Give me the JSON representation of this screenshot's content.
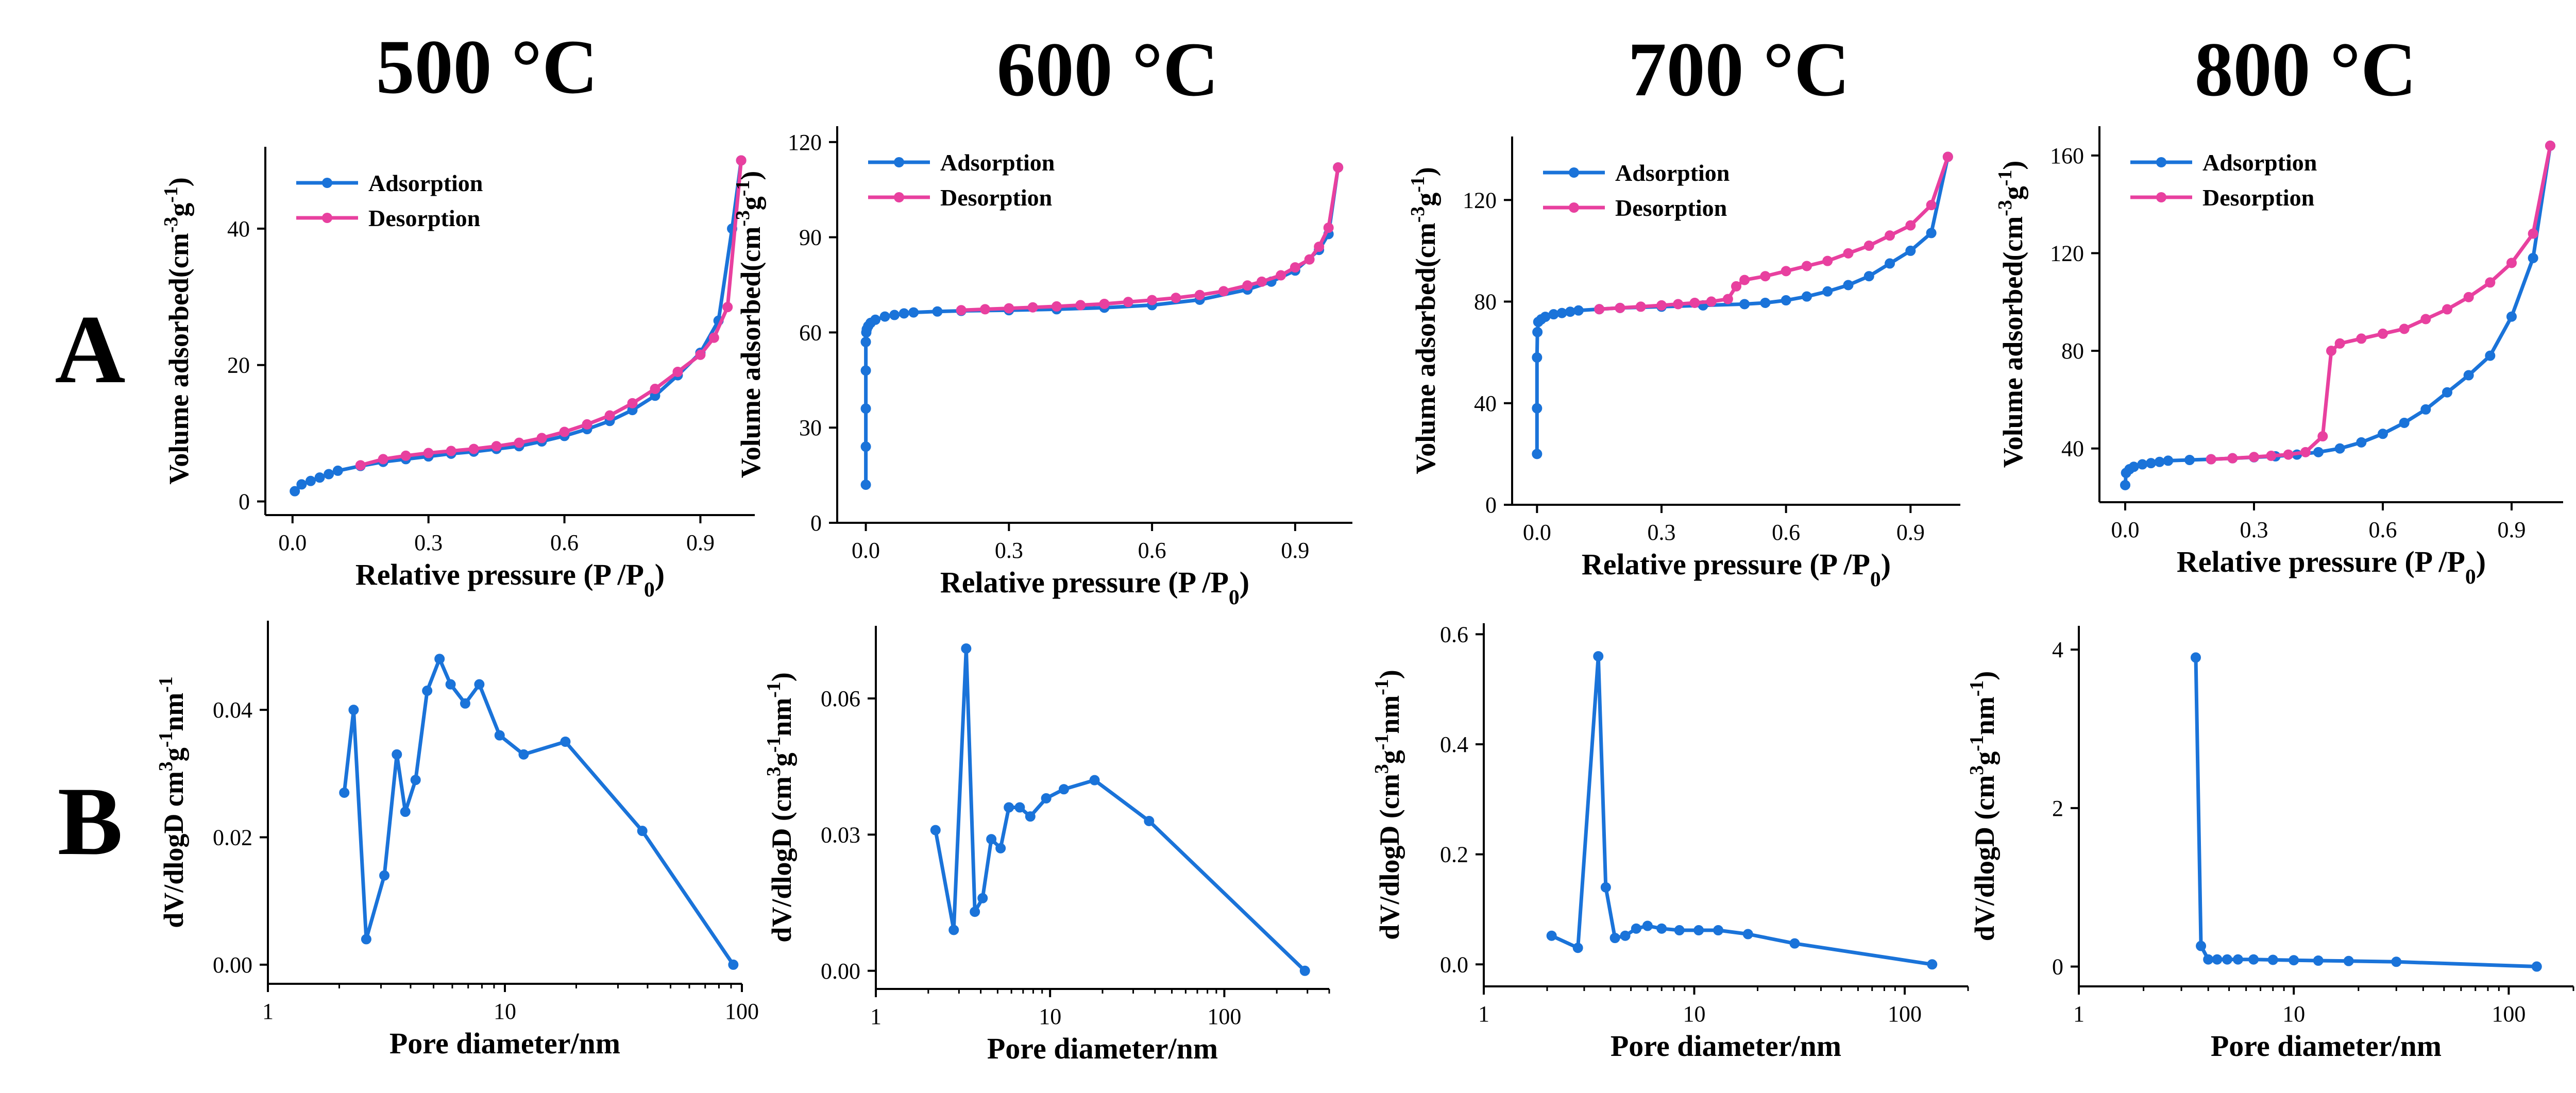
{
  "colors": {
    "adsorption": "#1a73d9",
    "desorption": "#e8409f",
    "pore": "#1a73d9",
    "axis": "#000000"
  },
  "row_labels": [
    "A",
    "B"
  ],
  "chart_data": [
    {
      "id": "A1",
      "type": "line",
      "title": "500 °C",
      "xlabel": "Relative pressure (P /P0)",
      "ylabel": "Volume adsorbed(cm-3g-1)",
      "xlim": [
        -0.06,
        1.02
      ],
      "ylim": [
        -2,
        52
      ],
      "xticks": [
        0.0,
        0.3,
        0.6,
        0.9
      ],
      "yticks": [
        0,
        20,
        40
      ],
      "legend": "top-left",
      "series": [
        {
          "name": "Adsorption",
          "x": [
            0.005,
            0.02,
            0.04,
            0.06,
            0.08,
            0.1,
            0.15,
            0.2,
            0.25,
            0.3,
            0.35,
            0.4,
            0.45,
            0.5,
            0.55,
            0.6,
            0.65,
            0.7,
            0.75,
            0.8,
            0.85,
            0.9,
            0.94,
            0.97,
            0.99
          ],
          "y": [
            1.5,
            2.5,
            3.0,
            3.5,
            4.0,
            4.5,
            5.2,
            5.8,
            6.2,
            6.6,
            7.0,
            7.3,
            7.7,
            8.1,
            8.8,
            9.6,
            10.6,
            11.8,
            13.4,
            15.5,
            18.5,
            21.8,
            26.5,
            40,
            50
          ]
        },
        {
          "name": "Desorption",
          "x": [
            0.99,
            0.96,
            0.93,
            0.9,
            0.85,
            0.8,
            0.75,
            0.7,
            0.65,
            0.6,
            0.55,
            0.5,
            0.45,
            0.4,
            0.35,
            0.3,
            0.25,
            0.2,
            0.15
          ],
          "y": [
            50,
            28.5,
            24,
            21.5,
            19.0,
            16.5,
            14.4,
            12.6,
            11.3,
            10.2,
            9.3,
            8.6,
            8.1,
            7.7,
            7.4,
            7.1,
            6.7,
            6.2,
            5.3
          ]
        }
      ]
    },
    {
      "id": "A2",
      "type": "line",
      "title": "600 °C",
      "xlabel": "Relative pressure (P /P0)",
      "ylabel": "Volume adsorbed(cm-3g-1)",
      "xlim": [
        -0.06,
        1.02
      ],
      "ylim": [
        0,
        125
      ],
      "xticks": [
        0.0,
        0.3,
        0.6,
        0.9
      ],
      "yticks": [
        0,
        30,
        60,
        90,
        120
      ],
      "legend": "top-left",
      "series": [
        {
          "name": "Adsorption",
          "x": [
            0.0,
            0.0,
            0.0,
            0.0,
            0.0,
            0.001,
            0.002,
            0.005,
            0.01,
            0.02,
            0.04,
            0.06,
            0.08,
            0.1,
            0.15,
            0.2,
            0.3,
            0.4,
            0.5,
            0.6,
            0.7,
            0.8,
            0.85,
            0.9,
            0.95,
            0.97,
            0.99
          ],
          "y": [
            12,
            24,
            36,
            48,
            57,
            60,
            61,
            62,
            63,
            64,
            65,
            65.5,
            66,
            66.3,
            66.6,
            66.8,
            67.0,
            67.3,
            67.8,
            68.6,
            70.3,
            73.5,
            76,
            79.5,
            86,
            91,
            112
          ]
        },
        {
          "name": "Desorption",
          "x": [
            0.99,
            0.97,
            0.95,
            0.93,
            0.9,
            0.87,
            0.83,
            0.8,
            0.75,
            0.7,
            0.65,
            0.6,
            0.55,
            0.5,
            0.45,
            0.4,
            0.35,
            0.3,
            0.25,
            0.2
          ],
          "y": [
            112,
            93,
            87,
            83,
            80.5,
            78,
            76,
            74.8,
            73,
            71.8,
            70.9,
            70.2,
            69.6,
            69.0,
            68.6,
            68.2,
            67.9,
            67.6,
            67.3,
            67.0
          ]
        }
      ]
    },
    {
      "id": "A3",
      "type": "line",
      "title": "700 °C",
      "xlabel": "Relative pressure (P /P0)",
      "ylabel": "Volume adsorbed(cm-3g-1)",
      "xlim": [
        -0.06,
        1.02
      ],
      "ylim": [
        0,
        145
      ],
      "xticks": [
        0.0,
        0.3,
        0.6,
        0.9
      ],
      "yticks": [
        0,
        40,
        80,
        120
      ],
      "legend": "top-left",
      "series": [
        {
          "name": "Adsorption",
          "x": [
            0.0,
            0.0,
            0.0,
            0.001,
            0.003,
            0.01,
            0.02,
            0.04,
            0.06,
            0.08,
            0.1,
            0.15,
            0.2,
            0.3,
            0.4,
            0.5,
            0.55,
            0.6,
            0.65,
            0.7,
            0.75,
            0.8,
            0.85,
            0.9,
            0.95,
            0.99
          ],
          "y": [
            20,
            38,
            58,
            68,
            72,
            73,
            74,
            75,
            75.5,
            76,
            76.5,
            77,
            77.5,
            78,
            78.5,
            79,
            79.5,
            80.5,
            82,
            84,
            86.5,
            90,
            95,
            100,
            107,
            137
          ]
        },
        {
          "name": "Desorption",
          "x": [
            0.99,
            0.95,
            0.9,
            0.85,
            0.8,
            0.75,
            0.7,
            0.65,
            0.6,
            0.55,
            0.5,
            0.48,
            0.46,
            0.42,
            0.38,
            0.34,
            0.3,
            0.25,
            0.2,
            0.15
          ],
          "y": [
            137,
            118,
            110,
            106,
            102,
            99,
            96,
            94,
            92,
            90,
            88.5,
            86,
            81,
            80,
            79.5,
            79,
            78.5,
            78,
            77.5,
            77
          ]
        }
      ]
    },
    {
      "id": "A4",
      "type": "line",
      "title": "800 °C",
      "xlabel": "Relative pressure (P /P0)",
      "ylabel": "Volume adsorbed(cm-3g-1)",
      "xlim": [
        -0.06,
        1.02
      ],
      "ylim": [
        18,
        172
      ],
      "xticks": [
        0.0,
        0.3,
        0.6,
        0.9
      ],
      "yticks": [
        40,
        80,
        120,
        160
      ],
      "legend": "top-left",
      "series": [
        {
          "name": "Adsorption",
          "x": [
            0.0,
            0.002,
            0.01,
            0.02,
            0.04,
            0.06,
            0.08,
            0.1,
            0.15,
            0.2,
            0.25,
            0.3,
            0.35,
            0.4,
            0.45,
            0.5,
            0.55,
            0.6,
            0.65,
            0.7,
            0.75,
            0.8,
            0.85,
            0.9,
            0.95,
            0.99
          ],
          "y": [
            25,
            30,
            31.5,
            32.5,
            33.5,
            34,
            34.5,
            35,
            35.3,
            35.6,
            36,
            36.4,
            36.8,
            37.5,
            38.5,
            40,
            42.5,
            46,
            50.5,
            56,
            63,
            70,
            78,
            94,
            118,
            164
          ]
        },
        {
          "name": "Desorption",
          "x": [
            0.99,
            0.95,
            0.9,
            0.85,
            0.8,
            0.75,
            0.7,
            0.65,
            0.6,
            0.55,
            0.5,
            0.48,
            0.46,
            0.42,
            0.38,
            0.34,
            0.3,
            0.25,
            0.2
          ],
          "y": [
            164,
            128,
            116,
            108,
            102,
            97,
            93,
            89,
            87,
            85,
            83,
            80,
            45,
            38.5,
            37.5,
            37,
            36.5,
            36,
            35.6
          ]
        }
      ]
    },
    {
      "id": "B1",
      "type": "line",
      "title": "",
      "xlabel": "Pore diameter/nm",
      "ylabel": "dV/dlogD cm3g-1nm-1",
      "xscale": "log",
      "xlim": [
        1,
        100
      ],
      "ylim": [
        -0.003,
        0.054
      ],
      "xticks": [
        1,
        10,
        100
      ],
      "xticklabels": [
        "1",
        "10",
        "100"
      ],
      "yticks": [
        0.0,
        0.02,
        0.04
      ],
      "yticklabels": [
        "0.00",
        "0.02",
        "0.04"
      ],
      "series": [
        {
          "name": "Pore size distribution",
          "x": [
            2.1,
            2.3,
            2.6,
            3.1,
            3.5,
            3.8,
            4.2,
            4.7,
            5.3,
            5.9,
            6.8,
            7.8,
            9.5,
            12,
            18,
            38,
            92
          ],
          "y": [
            0.027,
            0.04,
            0.004,
            0.014,
            0.033,
            0.024,
            0.029,
            0.043,
            0.048,
            0.044,
            0.041,
            0.044,
            0.036,
            0.033,
            0.035,
            0.021,
            0.0
          ]
        }
      ]
    },
    {
      "id": "B2",
      "type": "line",
      "title": "",
      "xlabel": "Pore diameter/nm",
      "ylabel": "dV/dlogD (cm3g-1nm-1)",
      "xscale": "log",
      "xlim": [
        1,
        400
      ],
      "ylim": [
        -0.004,
        0.076
      ],
      "xticks": [
        1,
        10,
        100
      ],
      "xticklabels": [
        "1",
        "10",
        "100"
      ],
      "yticks": [
        0.0,
        0.03,
        0.06
      ],
      "yticklabels": [
        "0.00",
        "0.03",
        "0.06"
      ],
      "series": [
        {
          "name": "Pore size distribution",
          "x": [
            2.2,
            2.8,
            3.3,
            3.7,
            4.1,
            4.6,
            5.2,
            5.8,
            6.7,
            7.7,
            9.5,
            12,
            18,
            37,
            290
          ],
          "y": [
            0.031,
            0.009,
            0.071,
            0.013,
            0.016,
            0.029,
            0.027,
            0.036,
            0.036,
            0.034,
            0.038,
            0.04,
            0.042,
            0.033,
            0.0
          ]
        }
      ]
    },
    {
      "id": "B3",
      "type": "line",
      "title": "",
      "xlabel": "Pore diameter/nm",
      "ylabel": "dV/dlogD (cm3g-1nm-1)",
      "xscale": "log",
      "xlim": [
        1,
        200
      ],
      "ylim": [
        -0.04,
        0.62
      ],
      "xticks": [
        1,
        10,
        100
      ],
      "xticklabels": [
        "1",
        "10",
        "100"
      ],
      "yticks": [
        0.0,
        0.2,
        0.4,
        0.6
      ],
      "yticklabels": [
        "0.0",
        "0.2",
        "0.4",
        "0.6"
      ],
      "series": [
        {
          "name": "Pore size distribution",
          "x": [
            2.1,
            2.8,
            3.5,
            3.8,
            4.2,
            4.7,
            5.3,
            6.0,
            7.0,
            8.5,
            10.5,
            13,
            18,
            30,
            135
          ],
          "y": [
            0.052,
            0.03,
            0.56,
            0.14,
            0.048,
            0.052,
            0.065,
            0.07,
            0.065,
            0.062,
            0.062,
            0.062,
            0.055,
            0.038,
            0.0
          ]
        }
      ]
    },
    {
      "id": "B4",
      "type": "line",
      "title": "",
      "xlabel": "Pore diameter/nm",
      "ylabel": "dV/dlogD (cm3g-1nm-1)",
      "xscale": "log",
      "xlim": [
        1,
        200
      ],
      "ylim": [
        -0.25,
        4.3
      ],
      "xticks": [
        1,
        10,
        100
      ],
      "xticklabels": [
        "1",
        "10",
        "100"
      ],
      "yticks": [
        0,
        2,
        4
      ],
      "yticklabels": [
        "0",
        "2",
        "4"
      ],
      "series": [
        {
          "name": "Pore size distribution",
          "x": [
            3.5,
            3.7,
            4.0,
            4.4,
            4.9,
            5.5,
            6.5,
            8.0,
            10,
            13,
            18,
            30,
            135
          ],
          "y": [
            3.9,
            0.26,
            0.09,
            0.09,
            0.09,
            0.09,
            0.09,
            0.085,
            0.08,
            0.075,
            0.07,
            0.06,
            0.0
          ]
        }
      ]
    }
  ]
}
